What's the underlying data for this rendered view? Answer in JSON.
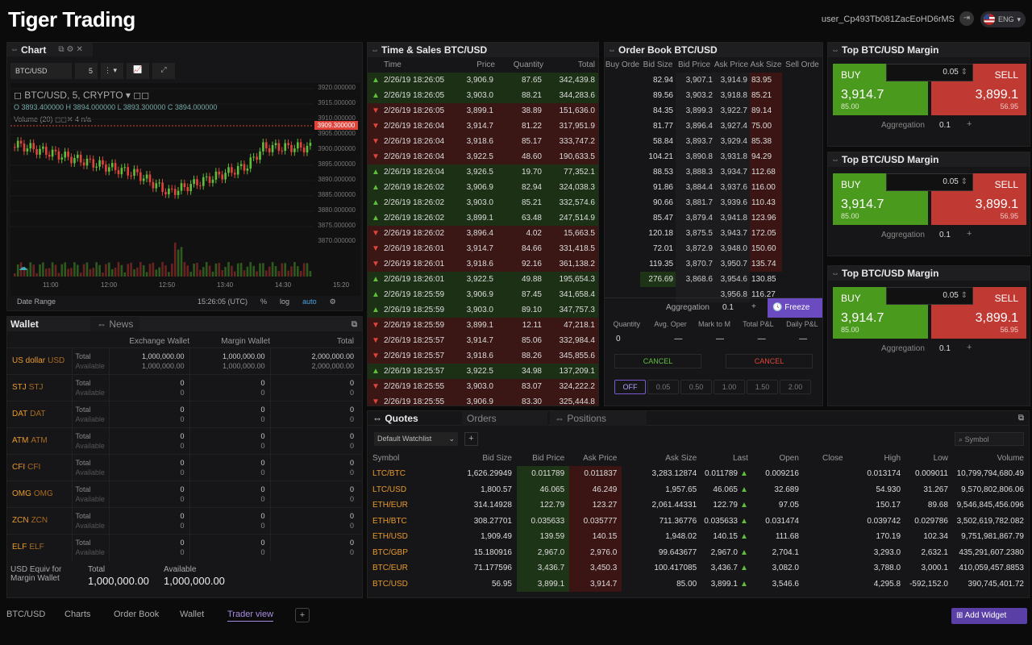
{
  "app": {
    "title": "Tiger Trading",
    "user": "user_Cp493Tb081ZacEoHD6rMS",
    "lang": "ENG"
  },
  "chart": {
    "title": "Chart",
    "symbol": "BTC/USD",
    "interval": "5",
    "legend": "BTC/USD, 5, CRYPTO",
    "ohlc": "O 3893.400000  H 3894.000000  L 3893.300000  C 3894.000000",
    "volume_label": "Volume (20)",
    "volume_val": "4  n/a",
    "price_tag": "3909.300000",
    "y_ticks": [
      "3920.000000",
      "3915.000000",
      "3910.000000",
      "3905.000000",
      "3900.000000",
      "3895.000000",
      "3890.000000",
      "3885.000000",
      "3880.000000",
      "3875.000000",
      "3870.000000"
    ],
    "x_ticks": [
      "11:00",
      "12:00",
      "12:50",
      "13:40",
      "14:30",
      "15:20"
    ],
    "date_range": "Date Range",
    "time": "15:26:05 (UTC)",
    "pct": "%",
    "log": "log",
    "auto": "auto"
  },
  "wallet": {
    "title": "Wallet",
    "news_tab": "News",
    "cols": [
      "Exchange Wallet",
      "Margin Wallet",
      "Total"
    ],
    "total_label": "Total",
    "avail_label": "Available",
    "rows": [
      {
        "sym": "US dollar",
        "code": "USD",
        "ex_t": "1,000,000.00",
        "ex_a": "1,000,000.00",
        "mg_t": "1,000,000.00",
        "mg_a": "1,000,000.00",
        "tot_t": "2,000,000.00",
        "tot_a": "2,000,000.00"
      },
      {
        "sym": "STJ",
        "code": "STJ",
        "ex_t": "0",
        "ex_a": "0",
        "mg_t": "0",
        "mg_a": "0",
        "tot_t": "0",
        "tot_a": "0"
      },
      {
        "sym": "DAT",
        "code": "DAT",
        "ex_t": "0",
        "ex_a": "0",
        "mg_t": "0",
        "mg_a": "0",
        "tot_t": "0",
        "tot_a": "0"
      },
      {
        "sym": "ATM",
        "code": "ATM",
        "ex_t": "0",
        "ex_a": "0",
        "mg_t": "0",
        "mg_a": "0",
        "tot_t": "0",
        "tot_a": "0"
      },
      {
        "sym": "CFI",
        "code": "CFI",
        "ex_t": "0",
        "ex_a": "0",
        "mg_t": "0",
        "mg_a": "0",
        "tot_t": "0",
        "tot_a": "0"
      },
      {
        "sym": "OMG",
        "code": "OMG",
        "ex_t": "0",
        "ex_a": "0",
        "mg_t": "0",
        "mg_a": "0",
        "tot_t": "0",
        "tot_a": "0"
      },
      {
        "sym": "ZCN",
        "code": "ZCN",
        "ex_t": "0",
        "ex_a": "0",
        "mg_t": "0",
        "mg_a": "0",
        "tot_t": "0",
        "tot_a": "0"
      },
      {
        "sym": "ELF",
        "code": "ELF",
        "ex_t": "0",
        "ex_a": "0",
        "mg_t": "0",
        "mg_a": "0",
        "tot_t": "0",
        "tot_a": "0"
      }
    ],
    "equiv": "USD Equiv for Margin Wallet",
    "eq_total_label": "Total",
    "eq_total": "1,000,000.00",
    "eq_avail_label": "Available",
    "eq_avail": "1,000,000.00"
  },
  "ts": {
    "title": "Time & Sales BTC/USD",
    "cols": [
      "Time",
      "Price",
      "Quantity",
      "Total"
    ],
    "rows": [
      [
        "u",
        "2/26/19 18:26:05",
        "3,906.9",
        "87.65",
        "342,439.8"
      ],
      [
        "u",
        "2/26/19 18:26:05",
        "3,903.0",
        "88.21",
        "344,283.6"
      ],
      [
        "d",
        "2/26/19 18:26:05",
        "3,899.1",
        "38.89",
        "151,636.0"
      ],
      [
        "d",
        "2/26/19 18:26:04",
        "3,914.7",
        "81.22",
        "317,951.9"
      ],
      [
        "d",
        "2/26/19 18:26:04",
        "3,918.6",
        "85.17",
        "333,747.2"
      ],
      [
        "d",
        "2/26/19 18:26:04",
        "3,922.5",
        "48.60",
        "190,633.5"
      ],
      [
        "u",
        "2/26/19 18:26:04",
        "3,926.5",
        "19.70",
        "77,352.1"
      ],
      [
        "u",
        "2/26/19 18:26:02",
        "3,906.9",
        "82.94",
        "324,038.3"
      ],
      [
        "u",
        "2/26/19 18:26:02",
        "3,903.0",
        "85.21",
        "332,574.6"
      ],
      [
        "u",
        "2/26/19 18:26:02",
        "3,899.1",
        "63.48",
        "247,514.9"
      ],
      [
        "d",
        "2/26/19 18:26:02",
        "3,896.4",
        "4.02",
        "15,663.5"
      ],
      [
        "d",
        "2/26/19 18:26:01",
        "3,914.7",
        "84.66",
        "331,418.5"
      ],
      [
        "d",
        "2/26/19 18:26:01",
        "3,918.6",
        "92.16",
        "361,138.2"
      ],
      [
        "u",
        "2/26/19 18:26:01",
        "3,922.5",
        "49.88",
        "195,654.3"
      ],
      [
        "u",
        "2/26/19 18:25:59",
        "3,906.9",
        "87.45",
        "341,658.4"
      ],
      [
        "u",
        "2/26/19 18:25:59",
        "3,903.0",
        "89.10",
        "347,757.3"
      ],
      [
        "d",
        "2/26/19 18:25:59",
        "3,899.1",
        "12.11",
        "47,218.1"
      ],
      [
        "d",
        "2/26/19 18:25:57",
        "3,914.7",
        "85.06",
        "332,984.4"
      ],
      [
        "d",
        "2/26/19 18:25:57",
        "3,918.6",
        "88.26",
        "345,855.6"
      ],
      [
        "u",
        "2/26/19 18:25:57",
        "3,922.5",
        "34.98",
        "137,209.1"
      ],
      [
        "d",
        "2/26/19 18:25:55",
        "3,903.0",
        "83.07",
        "324,222.2"
      ],
      [
        "d",
        "2/26/19 18:25:55",
        "3,906.9",
        "83.30",
        "325,444.8"
      ]
    ]
  },
  "ob": {
    "title": "Order Book BTC/USD",
    "cols": [
      "Buy Orde",
      "Bid Size",
      "Bid Price",
      "Ask Price",
      "Ask Size",
      "Sell Orde"
    ],
    "rows": [
      [
        "82.94",
        "3,907.1",
        "3,914.9",
        "83.95"
      ],
      [
        "89.56",
        "3,903.2",
        "3,918.8",
        "85.21"
      ],
      [
        "84.35",
        "3,899.3",
        "3,922.7",
        "89.14"
      ],
      [
        "81.77",
        "3,896.4",
        "3,927.4",
        "75.00"
      ],
      [
        "58.84",
        "3,893.7",
        "3,929.4",
        "85.38"
      ],
      [
        "104.21",
        "3,890.8",
        "3,931.8",
        "94.29"
      ],
      [
        "88.53",
        "3,888.3",
        "3,934.7",
        "112.68"
      ],
      [
        "91.86",
        "3,884.4",
        "3,937.6",
        "116.00"
      ],
      [
        "90.66",
        "3,881.7",
        "3,939.6",
        "110.43"
      ],
      [
        "85.47",
        "3,879.4",
        "3,941.8",
        "123.96"
      ],
      [
        "120.18",
        "3,875.5",
        "3,943.7",
        "172.05"
      ],
      [
        "72.01",
        "3,872.9",
        "3,948.0",
        "150.60"
      ],
      [
        "119.35",
        "3,870.7",
        "3,950.7",
        "135.74"
      ],
      [
        "276.69",
        "3,868.6",
        "3,954.6",
        "130.85"
      ],
      [
        "",
        "",
        "3,956.8",
        "116.27"
      ]
    ],
    "agg_label": "Aggregation",
    "agg": "0.1",
    "freeze": "Freeze",
    "pcols": [
      "Quantity",
      "Avg. Oper",
      "Mark to M",
      "Total P&L",
      "Daily P&L"
    ],
    "pvals": [
      "0",
      "—",
      "—",
      "—",
      "—"
    ],
    "cancel": "CANCEL",
    "opts": [
      "OFF",
      "0.05",
      "0.50",
      "1.00",
      "1.50",
      "2.00"
    ]
  },
  "margin": {
    "title": "Top BTC/USD Margin",
    "buy": "BUY",
    "sell": "SELL",
    "qty": "0.05",
    "buy_price": "3,914.7",
    "buy_size": "85.00",
    "sell_price": "3,899.1",
    "sell_size": "56.95",
    "agg_label": "Aggregation",
    "agg": "0.1"
  },
  "quotes": {
    "tabs": [
      "Quotes",
      "Orders",
      "Positions"
    ],
    "watchlist": "Default Watchlist",
    "search_ph": "Symbol",
    "cols": [
      "Symbol",
      "Bid Size",
      "Bid Price",
      "Ask Price",
      "Ask Size",
      "Last",
      "Open",
      "Close",
      "High",
      "Low",
      "Volume"
    ],
    "rows": [
      [
        "LTC/BTC",
        "1,626.29949",
        "0.011789",
        "0.011837",
        "3,283.12874",
        "0.011789",
        "0.009216",
        "",
        "0.013174",
        "0.009011",
        "10,799,794,680.49"
      ],
      [
        "LTC/USD",
        "1,800.57",
        "46.065",
        "46.249",
        "1,957.65",
        "46.065",
        "32.689",
        "",
        "54.930",
        "31.267",
        "9,570,802,806.06"
      ],
      [
        "ETH/EUR",
        "314.14928",
        "122.79",
        "123.27",
        "2,061.44331",
        "122.79",
        "97.05",
        "",
        "150.17",
        "89.68",
        "9,546,845,456.096"
      ],
      [
        "ETH/BTC",
        "308.27701",
        "0.035633",
        "0.035777",
        "711.36776",
        "0.035633",
        "0.031474",
        "",
        "0.039742",
        "0.029786",
        "3,502,619,782.082"
      ],
      [
        "ETH/USD",
        "1,909.49",
        "139.59",
        "140.15",
        "1,948.02",
        "140.15",
        "111.68",
        "",
        "170.19",
        "102.34",
        "9,751,981,867.79"
      ],
      [
        "BTC/GBP",
        "15.180916",
        "2,967.0",
        "2,976.0",
        "99.643677",
        "2,967.0",
        "2,704.1",
        "",
        "3,293.0",
        "2,632.1",
        "435,291,607.2380"
      ],
      [
        "BTC/EUR",
        "71.177596",
        "3,436.7",
        "3,450.3",
        "100.417085",
        "3,436.7",
        "3,082.0",
        "",
        "3,788.0",
        "3,000.1",
        "410,059,457.8853"
      ],
      [
        "BTC/USD",
        "56.95",
        "3,899.1",
        "3,914.7",
        "85.00",
        "3,899.1",
        "3,546.6",
        "",
        "4,295.8",
        "-592,152.0",
        "390,745,401.72"
      ]
    ]
  },
  "bottom": {
    "tabs": [
      "BTC/USD",
      "Charts",
      "Order Book",
      "Wallet",
      "Trader view"
    ],
    "add": "Add Widget"
  },
  "colors": {
    "up": "#5fbf3a",
    "down": "#e0443b",
    "accent": "#7a5ad0"
  }
}
